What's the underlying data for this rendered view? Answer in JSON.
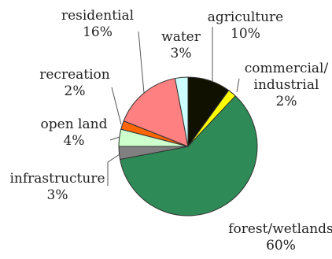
{
  "chart_data": {
    "type": "pie",
    "title": "",
    "slices": [
      {
        "name": "agriculture",
        "value": 10,
        "percent_label": "10%",
        "color": "#111100",
        "label_lines": [
          "agriculture",
          "10%"
        ]
      },
      {
        "name": "commercial/industrial",
        "value": 2,
        "percent_label": "2%",
        "color": "#ffff00",
        "label_lines": [
          "commercial/",
          "industrial",
          "2%"
        ]
      },
      {
        "name": "forest/wetlands",
        "value": 60,
        "percent_label": "60%",
        "color": "#2e8b57",
        "label_lines": [
          "forest/wetlands",
          "60%"
        ]
      },
      {
        "name": "infrastructure",
        "value": 3,
        "percent_label": "3%",
        "color": "#808080",
        "label_lines": [
          "infrastructure",
          "3%"
        ]
      },
      {
        "name": "open land",
        "value": 4,
        "percent_label": "4%",
        "color": "#ccffcc",
        "label_lines": [
          "open land",
          "4%"
        ]
      },
      {
        "name": "recreation",
        "value": 2,
        "percent_label": "2%",
        "color": "#ff6600",
        "label_lines": [
          "recreation",
          "2%"
        ]
      },
      {
        "name": "residential",
        "value": 16,
        "percent_label": "16%",
        "color": "#ff8080",
        "label_lines": [
          "residential",
          "16%"
        ]
      },
      {
        "name": "water",
        "value": 3,
        "percent_label": "3%",
        "color": "#ccffff",
        "label_lines": [
          "water",
          "3%"
        ]
      }
    ],
    "start": "top",
    "direction": "clockwise",
    "legend": "none",
    "slice_outline": "#333333"
  }
}
